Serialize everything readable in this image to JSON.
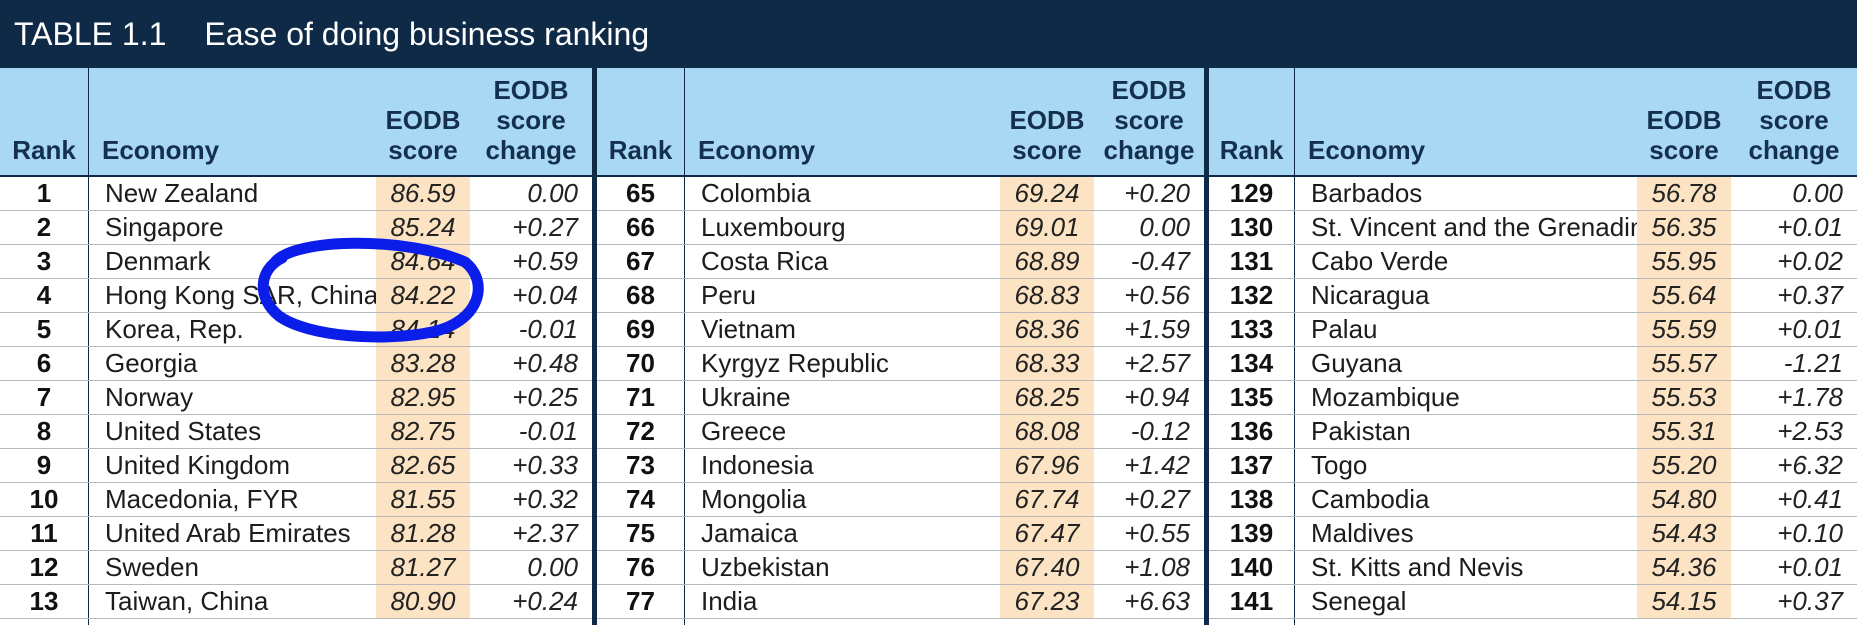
{
  "title": {
    "number": "TABLE 1.1",
    "text": "Ease of doing business ranking"
  },
  "columns": {
    "rank": "Rank",
    "economy": "Economy",
    "score": [
      "EODB",
      "score"
    ],
    "change": [
      "EODB",
      "score",
      "change"
    ]
  },
  "colors": {
    "header_bg": "#0f2a47",
    "column_header_bg": "#a8d8f4",
    "score_bg": "#fbe3c3",
    "annotation": "#0b1de8"
  },
  "panels": [
    {
      "rows": [
        {
          "rank": "1",
          "economy": "New Zealand",
          "score": "86.59",
          "change": "0.00"
        },
        {
          "rank": "2",
          "economy": "Singapore",
          "score": "85.24",
          "change": "+0.27"
        },
        {
          "rank": "3",
          "economy": "Denmark",
          "score": "84.64",
          "change": "+0.59"
        },
        {
          "rank": "4",
          "economy": "Hong Kong SAR, China",
          "score": "84.22",
          "change": "+0.04"
        },
        {
          "rank": "5",
          "economy": "Korea, Rep.",
          "score": "84.14",
          "change": "-0.01"
        },
        {
          "rank": "6",
          "economy": "Georgia",
          "score": "83.28",
          "change": "+0.48"
        },
        {
          "rank": "7",
          "economy": "Norway",
          "score": "82.95",
          "change": "+0.25"
        },
        {
          "rank": "8",
          "economy": "United States",
          "score": "82.75",
          "change": "-0.01"
        },
        {
          "rank": "9",
          "economy": "United Kingdom",
          "score": "82.65",
          "change": "+0.33"
        },
        {
          "rank": "10",
          "economy": "Macedonia, FYR",
          "score": "81.55",
          "change": "+0.32"
        },
        {
          "rank": "11",
          "economy": "United Arab Emirates",
          "score": "81.28",
          "change": "+2.37"
        },
        {
          "rank": "12",
          "economy": "Sweden",
          "score": "81.27",
          "change": "0.00"
        },
        {
          "rank": "13",
          "economy": "Taiwan, China",
          "score": "80.90",
          "change": "+0.24"
        }
      ]
    },
    {
      "rows": [
        {
          "rank": "65",
          "economy": "Colombia",
          "score": "69.24",
          "change": "+0.20"
        },
        {
          "rank": "66",
          "economy": "Luxembourg",
          "score": "69.01",
          "change": "0.00"
        },
        {
          "rank": "67",
          "economy": "Costa Rica",
          "score": "68.89",
          "change": "-0.47"
        },
        {
          "rank": "68",
          "economy": "Peru",
          "score": "68.83",
          "change": "+0.56"
        },
        {
          "rank": "69",
          "economy": "Vietnam",
          "score": "68.36",
          "change": "+1.59"
        },
        {
          "rank": "70",
          "economy": "Kyrgyz Republic",
          "score": "68.33",
          "change": "+2.57"
        },
        {
          "rank": "71",
          "economy": "Ukraine",
          "score": "68.25",
          "change": "+0.94"
        },
        {
          "rank": "72",
          "economy": "Greece",
          "score": "68.08",
          "change": "-0.12"
        },
        {
          "rank": "73",
          "economy": "Indonesia",
          "score": "67.96",
          "change": "+1.42"
        },
        {
          "rank": "74",
          "economy": "Mongolia",
          "score": "67.74",
          "change": "+0.27"
        },
        {
          "rank": "75",
          "economy": "Jamaica",
          "score": "67.47",
          "change": "+0.55"
        },
        {
          "rank": "76",
          "economy": "Uzbekistan",
          "score": "67.40",
          "change": "+1.08"
        },
        {
          "rank": "77",
          "economy": "India",
          "score": "67.23",
          "change": "+6.63"
        }
      ]
    },
    {
      "rows": [
        {
          "rank": "129",
          "economy": "Barbados",
          "score": "56.78",
          "change": "0.00"
        },
        {
          "rank": "130",
          "economy": "St. Vincent and the Grenadines",
          "score": "56.35",
          "change": "+0.01"
        },
        {
          "rank": "131",
          "economy": "Cabo Verde",
          "score": "55.95",
          "change": "+0.02"
        },
        {
          "rank": "132",
          "economy": "Nicaragua",
          "score": "55.64",
          "change": "+0.37"
        },
        {
          "rank": "133",
          "economy": "Palau",
          "score": "55.59",
          "change": "+0.01"
        },
        {
          "rank": "134",
          "economy": "Guyana",
          "score": "55.57",
          "change": "-1.21"
        },
        {
          "rank": "135",
          "economy": "Mozambique",
          "score": "55.53",
          "change": "+1.78"
        },
        {
          "rank": "136",
          "economy": "Pakistan",
          "score": "55.31",
          "change": "+2.53"
        },
        {
          "rank": "137",
          "economy": "Togo",
          "score": "55.20",
          "change": "+6.32"
        },
        {
          "rank": "138",
          "economy": "Cambodia",
          "score": "54.80",
          "change": "+0.41"
        },
        {
          "rank": "139",
          "economy": "Maldives",
          "score": "54.43",
          "change": "+0.10"
        },
        {
          "rank": "140",
          "economy": "St. Kitts and Nevis",
          "score": "54.36",
          "change": "+0.01"
        },
        {
          "rank": "141",
          "economy": "Senegal",
          "score": "54.15",
          "change": "+0.37"
        }
      ]
    }
  ]
}
